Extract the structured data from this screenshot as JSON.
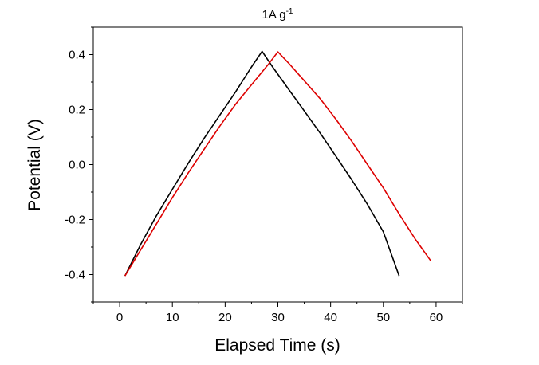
{
  "chart_data": {
    "type": "line",
    "title": "1A g",
    "title_superscript": "-1",
    "xlabel": "Elapsed Time (s)",
    "ylabel": "Potential (V)",
    "xlim": [
      -5,
      65
    ],
    "ylim": [
      -0.5,
      0.5
    ],
    "xticks": [
      0,
      10,
      20,
      30,
      40,
      50,
      60
    ],
    "xtick_labels": [
      "0",
      "10",
      "20",
      "30",
      "40",
      "50",
      "60"
    ],
    "yticks": [
      -0.4,
      -0.2,
      0.0,
      0.2,
      0.4
    ],
    "ytick_labels": [
      "-0.4",
      "-0.2",
      "0.0",
      "0.2",
      "0.4"
    ],
    "grid": false,
    "legend": false,
    "series": [
      {
        "color": "#000000",
        "x": [
          1,
          4,
          7,
          10,
          13,
          16,
          19,
          22,
          25,
          27,
          29,
          32,
          35,
          38,
          41,
          44,
          47,
          50,
          53
        ],
        "y": [
          -0.405,
          -0.29,
          -0.185,
          -0.09,
          0.005,
          0.095,
          0.18,
          0.265,
          0.355,
          0.412,
          0.355,
          0.275,
          0.195,
          0.115,
          0.03,
          -0.055,
          -0.145,
          -0.245,
          -0.405
        ]
      },
      {
        "color": "#dd0000",
        "x": [
          1,
          4,
          7,
          10,
          13,
          16,
          19,
          22,
          25,
          28,
          30,
          32,
          35,
          38,
          41,
          44,
          47,
          50,
          53,
          56,
          59
        ],
        "y": [
          -0.405,
          -0.31,
          -0.215,
          -0.12,
          -0.03,
          0.055,
          0.14,
          0.22,
          0.29,
          0.36,
          0.41,
          0.37,
          0.305,
          0.24,
          0.165,
          0.085,
          0.0,
          -0.085,
          -0.18,
          -0.27,
          -0.35
        ]
      }
    ]
  }
}
